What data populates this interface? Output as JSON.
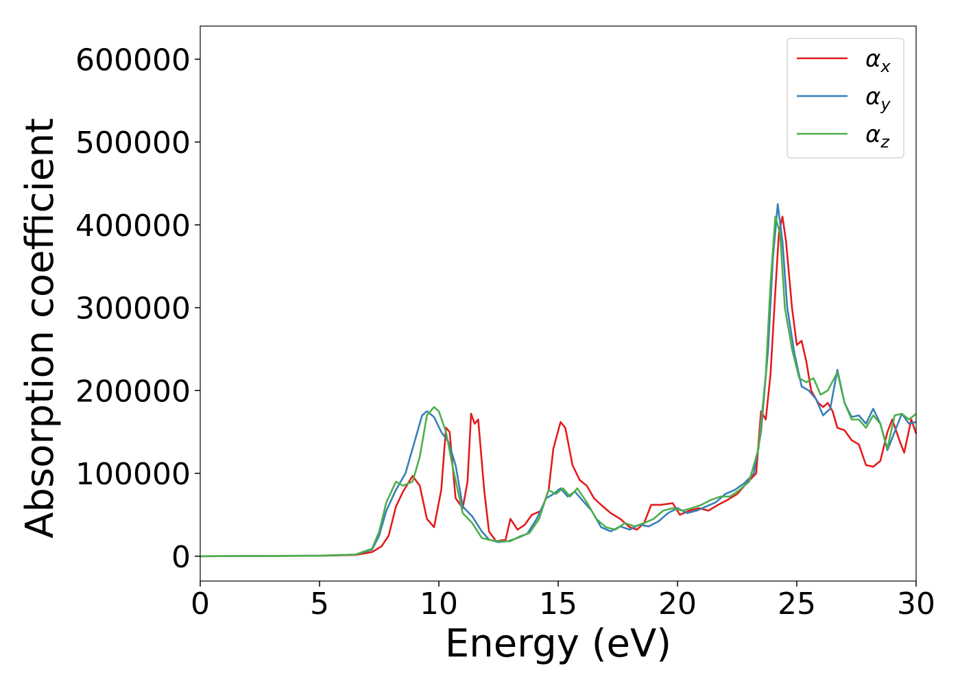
{
  "chart_data": {
    "type": "line",
    "title": "",
    "xlabel": "Energy (eV)",
    "ylabel": "Absorption coefficient",
    "xlim": [
      0,
      30
    ],
    "ylim": [
      -30000,
      640000
    ],
    "xticks": [
      0,
      5,
      10,
      15,
      20,
      25,
      30
    ],
    "xtick_labels": [
      "0",
      "5",
      "10",
      "15",
      "20",
      "25",
      "30"
    ],
    "yticks": [
      0,
      100000,
      200000,
      300000,
      400000,
      500000,
      600000
    ],
    "ytick_labels": [
      "0",
      "100000",
      "200000",
      "300000",
      "400000",
      "500000",
      "600000"
    ],
    "grid": false,
    "legend_position": "top-right",
    "series": [
      {
        "name": "α",
        "subscript": "x",
        "color": "#e41a1c",
        "points": [
          [
            0,
            0
          ],
          [
            5,
            500
          ],
          [
            6.5,
            1500
          ],
          [
            7.2,
            5000
          ],
          [
            7.6,
            12000
          ],
          [
            7.9,
            25000
          ],
          [
            8.2,
            60000
          ],
          [
            8.5,
            78000
          ],
          [
            8.9,
            97000
          ],
          [
            9.2,
            85000
          ],
          [
            9.5,
            45000
          ],
          [
            9.8,
            35000
          ],
          [
            10.1,
            80000
          ],
          [
            10.3,
            155000
          ],
          [
            10.45,
            150000
          ],
          [
            10.7,
            70000
          ],
          [
            11.0,
            58000
          ],
          [
            11.2,
            90000
          ],
          [
            11.35,
            172000
          ],
          [
            11.5,
            160000
          ],
          [
            11.65,
            165000
          ],
          [
            11.9,
            80000
          ],
          [
            12.1,
            30000
          ],
          [
            12.4,
            18000
          ],
          [
            12.8,
            20000
          ],
          [
            13.0,
            45000
          ],
          [
            13.3,
            32000
          ],
          [
            13.6,
            38000
          ],
          [
            13.9,
            50000
          ],
          [
            14.3,
            55000
          ],
          [
            14.6,
            80000
          ],
          [
            14.8,
            130000
          ],
          [
            15.1,
            162000
          ],
          [
            15.3,
            155000
          ],
          [
            15.6,
            110000
          ],
          [
            15.9,
            92000
          ],
          [
            16.2,
            85000
          ],
          [
            16.5,
            70000
          ],
          [
            16.8,
            62000
          ],
          [
            17.2,
            52000
          ],
          [
            17.6,
            45000
          ],
          [
            18.0,
            35000
          ],
          [
            18.3,
            32000
          ],
          [
            18.6,
            40000
          ],
          [
            18.9,
            62000
          ],
          [
            19.3,
            62000
          ],
          [
            19.8,
            64000
          ],
          [
            20.1,
            50000
          ],
          [
            20.5,
            55000
          ],
          [
            20.9,
            58000
          ],
          [
            21.3,
            55000
          ],
          [
            21.7,
            62000
          ],
          [
            22.1,
            68000
          ],
          [
            22.5,
            75000
          ],
          [
            22.9,
            88000
          ],
          [
            23.3,
            100000
          ],
          [
            23.5,
            175000
          ],
          [
            23.7,
            165000
          ],
          [
            23.9,
            220000
          ],
          [
            24.1,
            320000
          ],
          [
            24.25,
            390000
          ],
          [
            24.4,
            410000
          ],
          [
            24.55,
            380000
          ],
          [
            24.8,
            300000
          ],
          [
            25.0,
            255000
          ],
          [
            25.2,
            260000
          ],
          [
            25.4,
            235000
          ],
          [
            25.6,
            200000
          ],
          [
            25.9,
            185000
          ],
          [
            26.1,
            180000
          ],
          [
            26.3,
            185000
          ],
          [
            26.5,
            175000
          ],
          [
            26.7,
            155000
          ],
          [
            27.0,
            152000
          ],
          [
            27.3,
            140000
          ],
          [
            27.6,
            135000
          ],
          [
            27.9,
            110000
          ],
          [
            28.2,
            108000
          ],
          [
            28.5,
            115000
          ],
          [
            28.8,
            150000
          ],
          [
            29.0,
            165000
          ],
          [
            29.3,
            140000
          ],
          [
            29.5,
            125000
          ],
          [
            29.8,
            165000
          ],
          [
            30.0,
            148000
          ]
        ]
      },
      {
        "name": "α",
        "subscript": "y",
        "color": "#377eb8",
        "points": [
          [
            0,
            0
          ],
          [
            5,
            600
          ],
          [
            6.5,
            2000
          ],
          [
            7.2,
            8000
          ],
          [
            7.5,
            25000
          ],
          [
            7.8,
            55000
          ],
          [
            8.2,
            80000
          ],
          [
            8.6,
            100000
          ],
          [
            9.0,
            140000
          ],
          [
            9.3,
            170000
          ],
          [
            9.5,
            175000
          ],
          [
            9.8,
            168000
          ],
          [
            10.1,
            150000
          ],
          [
            10.4,
            138000
          ],
          [
            10.7,
            110000
          ],
          [
            11.0,
            60000
          ],
          [
            11.4,
            48000
          ],
          [
            11.8,
            30000
          ],
          [
            12.1,
            20000
          ],
          [
            12.5,
            17000
          ],
          [
            12.9,
            18000
          ],
          [
            13.3,
            22000
          ],
          [
            13.7,
            27000
          ],
          [
            14.1,
            45000
          ],
          [
            14.5,
            70000
          ],
          [
            14.8,
            75000
          ],
          [
            15.1,
            82000
          ],
          [
            15.4,
            72000
          ],
          [
            15.7,
            78000
          ],
          [
            16.0,
            68000
          ],
          [
            16.4,
            55000
          ],
          [
            16.8,
            35000
          ],
          [
            17.2,
            30000
          ],
          [
            17.6,
            36000
          ],
          [
            18.0,
            32000
          ],
          [
            18.4,
            38000
          ],
          [
            18.8,
            36000
          ],
          [
            19.2,
            42000
          ],
          [
            19.6,
            52000
          ],
          [
            20.0,
            58000
          ],
          [
            20.4,
            52000
          ],
          [
            20.8,
            55000
          ],
          [
            21.2,
            60000
          ],
          [
            21.6,
            65000
          ],
          [
            22.0,
            75000
          ],
          [
            22.4,
            80000
          ],
          [
            22.8,
            88000
          ],
          [
            23.2,
            100000
          ],
          [
            23.5,
            150000
          ],
          [
            23.8,
            250000
          ],
          [
            24.0,
            360000
          ],
          [
            24.2,
            425000
          ],
          [
            24.4,
            380000
          ],
          [
            24.6,
            300000
          ],
          [
            24.9,
            245000
          ],
          [
            25.2,
            205000
          ],
          [
            25.5,
            200000
          ],
          [
            25.8,
            190000
          ],
          [
            26.1,
            170000
          ],
          [
            26.4,
            178000
          ],
          [
            26.7,
            225000
          ],
          [
            27.0,
            185000
          ],
          [
            27.3,
            168000
          ],
          [
            27.6,
            170000
          ],
          [
            27.9,
            160000
          ],
          [
            28.2,
            178000
          ],
          [
            28.5,
            160000
          ],
          [
            28.8,
            128000
          ],
          [
            29.1,
            150000
          ],
          [
            29.4,
            172000
          ],
          [
            29.7,
            160000
          ],
          [
            30.0,
            162000
          ]
        ]
      },
      {
        "name": "α",
        "subscript": "z",
        "color": "#4daf4a",
        "points": [
          [
            0,
            0
          ],
          [
            5,
            600
          ],
          [
            6.5,
            2000
          ],
          [
            7.2,
            9000
          ],
          [
            7.5,
            30000
          ],
          [
            7.8,
            65000
          ],
          [
            8.2,
            90000
          ],
          [
            8.5,
            85000
          ],
          [
            8.9,
            90000
          ],
          [
            9.2,
            120000
          ],
          [
            9.5,
            170000
          ],
          [
            9.8,
            180000
          ],
          [
            10.0,
            175000
          ],
          [
            10.3,
            150000
          ],
          [
            10.6,
            105000
          ],
          [
            11.0,
            52000
          ],
          [
            11.4,
            40000
          ],
          [
            11.8,
            22000
          ],
          [
            12.2,
            19000
          ],
          [
            12.6,
            18000
          ],
          [
            13.0,
            18000
          ],
          [
            13.4,
            24000
          ],
          [
            13.8,
            28000
          ],
          [
            14.2,
            45000
          ],
          [
            14.6,
            80000
          ],
          [
            14.9,
            75000
          ],
          [
            15.2,
            82000
          ],
          [
            15.5,
            72000
          ],
          [
            15.8,
            82000
          ],
          [
            16.2,
            65000
          ],
          [
            16.6,
            45000
          ],
          [
            17.0,
            35000
          ],
          [
            17.4,
            32000
          ],
          [
            17.8,
            40000
          ],
          [
            18.2,
            36000
          ],
          [
            18.6,
            40000
          ],
          [
            19.0,
            45000
          ],
          [
            19.4,
            55000
          ],
          [
            19.8,
            58000
          ],
          [
            20.2,
            55000
          ],
          [
            20.6,
            58000
          ],
          [
            21.0,
            62000
          ],
          [
            21.4,
            68000
          ],
          [
            21.8,
            72000
          ],
          [
            22.2,
            72000
          ],
          [
            22.6,
            80000
          ],
          [
            23.0,
            90000
          ],
          [
            23.4,
            130000
          ],
          [
            23.7,
            220000
          ],
          [
            23.9,
            330000
          ],
          [
            24.1,
            410000
          ],
          [
            24.3,
            390000
          ],
          [
            24.5,
            300000
          ],
          [
            24.8,
            250000
          ],
          [
            25.1,
            215000
          ],
          [
            25.4,
            210000
          ],
          [
            25.7,
            215000
          ],
          [
            26.0,
            195000
          ],
          [
            26.3,
            200000
          ],
          [
            26.7,
            222000
          ],
          [
            27.0,
            185000
          ],
          [
            27.3,
            165000
          ],
          [
            27.6,
            165000
          ],
          [
            27.9,
            155000
          ],
          [
            28.2,
            170000
          ],
          [
            28.5,
            160000
          ],
          [
            28.8,
            130000
          ],
          [
            29.1,
            170000
          ],
          [
            29.4,
            172000
          ],
          [
            29.7,
            165000
          ],
          [
            30.0,
            172000
          ]
        ]
      }
    ]
  }
}
